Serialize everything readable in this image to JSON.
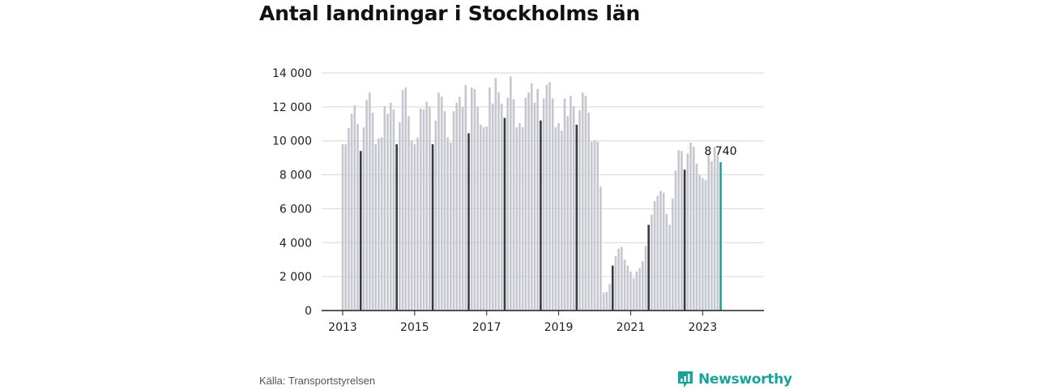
{
  "title": "Antal landningar i Stockholms län",
  "source": "Källa: Transportstyrelsen",
  "brand": {
    "name": "Newsworthy",
    "icon": "newsworthy-logo-icon"
  },
  "colors": {
    "bar": "#c6c6d0",
    "highlight": "#3a3940",
    "latest": "#1aa39a",
    "grid": "#d6d6d6",
    "axis": "#222222"
  },
  "chart_data": {
    "type": "bar",
    "title": "Antal landningar i Stockholms län",
    "xlabel": "",
    "ylabel": "",
    "ylim": [
      0,
      14000
    ],
    "yticks": [
      0,
      2000,
      4000,
      6000,
      8000,
      10000,
      12000,
      14000
    ],
    "ytick_labels": [
      "0",
      "2 000",
      "4 000",
      "6 000",
      "8 000",
      "10 000",
      "12 000",
      "14 000"
    ],
    "xticks": [
      "2013",
      "2015",
      "2017",
      "2019",
      "2021",
      "2023"
    ],
    "grid": true,
    "start": "2013-01",
    "end": "2023-07",
    "highlight_month": "07",
    "latest_label": "8 740",
    "values": [
      9800,
      9800,
      10750,
      11600,
      12100,
      11000,
      9400,
      10800,
      12400,
      12850,
      11650,
      9800,
      10150,
      10200,
      12050,
      11600,
      12250,
      11850,
      9800,
      11100,
      13000,
      13150,
      11450,
      10000,
      9800,
      10200,
      11900,
      11850,
      12300,
      12050,
      9800,
      11200,
      12850,
      12600,
      11750,
      10200,
      9900,
      11750,
      12250,
      12600,
      12000,
      13300,
      10450,
      13150,
      13050,
      12000,
      10950,
      10800,
      10850,
      13150,
      12200,
      13700,
      12850,
      12200,
      11350,
      12550,
      13800,
      12450,
      10800,
      11050,
      10800,
      12550,
      12850,
      13400,
      12250,
      13050,
      11200,
      12500,
      13300,
      13450,
      12500,
      10800,
      11050,
      10600,
      12500,
      11450,
      12650,
      12050,
      10950,
      11800,
      12850,
      12650,
      11650,
      9950,
      10050,
      9950,
      7300,
      1050,
      1100,
      1550,
      2650,
      3200,
      3650,
      3750,
      3000,
      2650,
      2300,
      1900,
      2300,
      2500,
      2900,
      3800,
      5050,
      5650,
      6450,
      6750,
      7050,
      6950,
      5700,
      5050,
      6600,
      8250,
      9450,
      9400,
      8300,
      9250,
      9900,
      9650,
      8650,
      8000,
      7800,
      7700,
      9250,
      8800,
      9650,
      9150,
      8740
    ]
  }
}
